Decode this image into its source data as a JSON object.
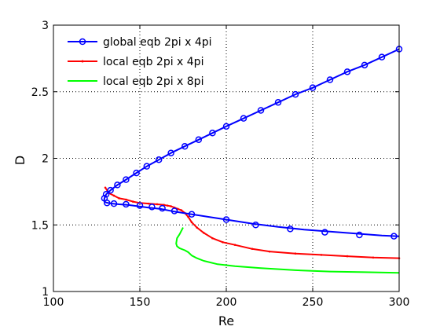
{
  "chart_data": {
    "type": "line",
    "title": "",
    "xlabel": "Re",
    "ylabel": "D",
    "xlim": [
      100,
      300
    ],
    "ylim": [
      1,
      3
    ],
    "xticks": [
      100,
      150,
      200,
      250,
      300
    ],
    "yticks": [
      1,
      1.5,
      2,
      2.5,
      3
    ],
    "xtick_labels": [
      "100",
      "150",
      "200",
      "250",
      "300"
    ],
    "ytick_labels": [
      "1",
      "1.5",
      "2",
      "2.5",
      "3"
    ],
    "grid": true,
    "legend_position": "top-left",
    "series": [
      {
        "name": "global eqb 2pi x 4pi",
        "color": "#0000ff",
        "marker": "circle",
        "x": [
          300,
          290,
          280,
          270,
          260,
          250,
          240,
          230,
          220,
          210,
          200,
          192,
          184,
          176,
          168,
          161,
          154,
          148,
          142,
          137,
          133,
          130.5,
          129.5,
          129.3,
          130,
          131.5,
          134,
          138,
          143,
          149,
          155,
          162,
          170,
          180,
          190,
          200,
          215,
          230,
          245,
          260,
          275,
          290,
          300
        ],
        "y": [
          2.82,
          2.76,
          2.7,
          2.65,
          2.59,
          2.53,
          2.48,
          2.42,
          2.36,
          2.3,
          2.24,
          2.19,
          2.14,
          2.09,
          2.04,
          1.99,
          1.94,
          1.89,
          1.84,
          1.8,
          1.76,
          1.73,
          1.7,
          1.68,
          1.67,
          1.665,
          1.66,
          1.655,
          1.65,
          1.64,
          1.63,
          1.62,
          1.6,
          1.58,
          1.56,
          1.54,
          1.51,
          1.485,
          1.465,
          1.45,
          1.435,
          1.42,
          1.415
        ],
        "marker_x": [
          300,
          290,
          280,
          270,
          260,
          250,
          240,
          230,
          220,
          210,
          200,
          192,
          184,
          176,
          168,
          161,
          154,
          148,
          142,
          137,
          133,
          130.5,
          129.5,
          131,
          135,
          142,
          150,
          157,
          163,
          170,
          180,
          200,
          217,
          237,
          257,
          277,
          297
        ],
        "marker_y": [
          2.82,
          2.76,
          2.7,
          2.65,
          2.59,
          2.53,
          2.48,
          2.42,
          2.36,
          2.3,
          2.24,
          2.19,
          2.14,
          2.09,
          2.04,
          1.99,
          1.94,
          1.89,
          1.84,
          1.8,
          1.76,
          1.73,
          1.7,
          1.665,
          1.66,
          1.655,
          1.645,
          1.635,
          1.625,
          1.605,
          1.58,
          1.54,
          1.5,
          1.47,
          1.445,
          1.425,
          1.415
        ]
      },
      {
        "name": "local eqb 2pi x 4pi",
        "color": "#ff0000",
        "marker": "dot",
        "x": [
          130,
          132,
          135,
          138,
          142,
          146,
          150,
          155,
          160,
          164,
          166,
          168,
          170,
          172,
          174,
          176,
          178,
          180,
          183,
          187,
          192,
          198,
          205,
          215,
          225,
          240,
          255,
          270,
          285,
          300
        ],
        "y": [
          1.78,
          1.74,
          1.72,
          1.7,
          1.69,
          1.675,
          1.665,
          1.66,
          1.655,
          1.65,
          1.645,
          1.64,
          1.63,
          1.62,
          1.61,
          1.59,
          1.56,
          1.52,
          1.48,
          1.44,
          1.4,
          1.37,
          1.35,
          1.32,
          1.3,
          1.285,
          1.275,
          1.265,
          1.255,
          1.25
        ]
      },
      {
        "name": "local eqb 2pi x 8pi",
        "color": "#00ff00",
        "marker": "none",
        "x": [
          175,
          173,
          171.5,
          171,
          171.5,
          173,
          176,
          178,
          180,
          183,
          187,
          195,
          205,
          220,
          240,
          260,
          280,
          300
        ],
        "y": [
          1.48,
          1.43,
          1.4,
          1.36,
          1.34,
          1.325,
          1.31,
          1.295,
          1.27,
          1.25,
          1.23,
          1.205,
          1.19,
          1.175,
          1.16,
          1.15,
          1.145,
          1.14
        ]
      }
    ]
  }
}
